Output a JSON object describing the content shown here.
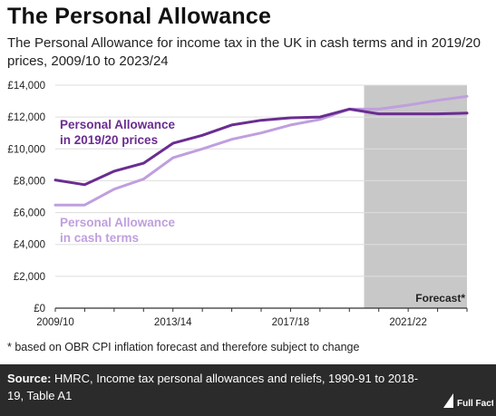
{
  "title": "The Personal Allowance",
  "subtitle": "The Personal Allowance for income tax in the UK in cash terms and in 2019/20 prices, 2009/10 to 2023/24",
  "footnote": "* based on OBR CPI inflation forecast and therefore subject to change",
  "source": {
    "label": "Source:",
    "text": "HMRC, Income tax personal allowances and reliefs, 1990-91 to 2018-19, Table A1"
  },
  "logo_text": "Full Fact",
  "colors": {
    "dark_purple": "#6a2d91",
    "light_purple": "#bf9fde",
    "forecast_shade": "#c8c8c8",
    "grid": "#dddddd",
    "footer_bg": "#2b2b2b"
  },
  "chart_data": {
    "type": "line",
    "x": [
      "2009/10",
      "2010/11",
      "2011/12",
      "2012/13",
      "2013/14",
      "2014/15",
      "2015/16",
      "2016/17",
      "2017/18",
      "2018/19",
      "2019/20",
      "2020/21",
      "2021/22",
      "2022/23",
      "2023/24"
    ],
    "x_tick_labels": [
      "2009/10",
      "2013/14",
      "2017/18",
      "2021/22"
    ],
    "y_tick_labels": [
      "£0",
      "£2,000",
      "£4,000",
      "£6,000",
      "£8,000",
      "£10,000",
      "£12,000",
      "£14,000"
    ],
    "ylim": [
      0,
      14000
    ],
    "grid": "horizontal",
    "forecast_region": {
      "from": "2020/21",
      "to": "2023/24",
      "label": "Forecast*"
    },
    "series": [
      {
        "name": "Personal Allowance in 2019/20 prices",
        "color": "#6a2d91",
        "values": [
          8050,
          7750,
          8600,
          9100,
          10350,
          10850,
          11500,
          11800,
          11950,
          12000,
          12500,
          12200,
          12200,
          12200,
          12250
        ]
      },
      {
        "name": "Personal Allowance in cash terms",
        "color": "#bf9fde",
        "values": [
          6475,
          6475,
          7475,
          8105,
          9440,
          10000,
          10600,
          11000,
          11500,
          11850,
          12500,
          12500,
          12750,
          13050,
          13300
        ]
      }
    ]
  }
}
